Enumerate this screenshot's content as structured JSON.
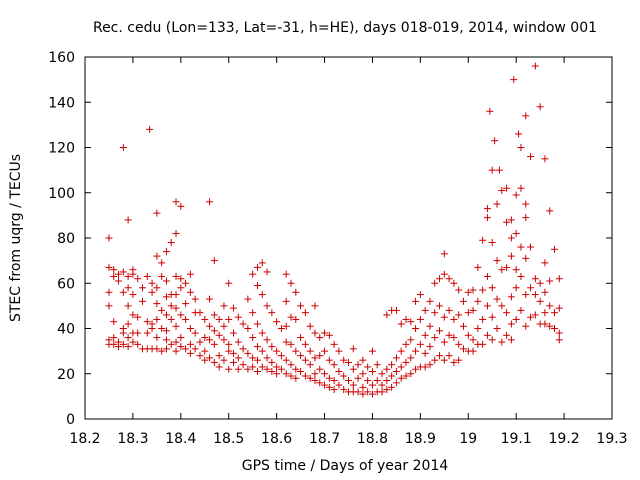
{
  "chart_data": {
    "type": "scatter",
    "title": "Rec. cedu (Lon=133, Lat=-31, h=HE), days 018-019, 2014, window 001",
    "xlabel": "GPS time / Days of year 2014",
    "ylabel": "STEC from uqrg / TECUs",
    "xlim": [
      18.2,
      19.3
    ],
    "ylim": [
      0,
      160
    ],
    "xticks": [
      18.2,
      18.3,
      18.4,
      18.5,
      18.6,
      18.7,
      18.8,
      18.9,
      19.0,
      19.1,
      19.2,
      19.3
    ],
    "xtick_labels": [
      "18.2",
      "18.3",
      "18.4",
      "18.5",
      "18.6",
      "18.7",
      "18.8",
      "18.9",
      "19",
      "19.1",
      "19.2",
      "19.3"
    ],
    "yticks": [
      0,
      20,
      40,
      60,
      80,
      100,
      120,
      140,
      160
    ],
    "ytick_labels": [
      "0",
      "20",
      "40",
      "60",
      "80",
      "100",
      "120",
      "140",
      "160"
    ],
    "grid": false,
    "marker": "+",
    "color": "#cc0000",
    "points": [
      [
        18.25,
        80
      ],
      [
        18.25,
        67
      ],
      [
        18.25,
        56
      ],
      [
        18.25,
        50
      ],
      [
        18.25,
        35
      ],
      [
        18.25,
        33
      ],
      [
        18.26,
        66
      ],
      [
        18.26,
        63
      ],
      [
        18.26,
        43
      ],
      [
        18.26,
        36
      ],
      [
        18.26,
        33
      ],
      [
        18.27,
        64
      ],
      [
        18.27,
        61
      ],
      [
        18.27,
        34
      ],
      [
        18.27,
        32
      ],
      [
        18.28,
        120
      ],
      [
        18.28,
        65
      ],
      [
        18.28,
        56
      ],
      [
        18.28,
        40
      ],
      [
        18.28,
        38
      ],
      [
        18.28,
        33
      ],
      [
        18.29,
        88
      ],
      [
        18.29,
        63
      ],
      [
        18.29,
        58
      ],
      [
        18.29,
        50
      ],
      [
        18.29,
        42
      ],
      [
        18.29,
        36
      ],
      [
        18.29,
        32
      ],
      [
        18.3,
        66
      ],
      [
        18.3,
        64
      ],
      [
        18.3,
        55
      ],
      [
        18.3,
        46
      ],
      [
        18.3,
        38
      ],
      [
        18.3,
        34
      ],
      [
        18.31,
        62
      ],
      [
        18.31,
        45
      ],
      [
        18.31,
        38
      ],
      [
        18.31,
        33
      ],
      [
        18.32,
        58
      ],
      [
        18.32,
        52
      ],
      [
        18.32,
        31
      ],
      [
        18.33,
        63
      ],
      [
        18.33,
        43
      ],
      [
        18.33,
        38
      ],
      [
        18.33,
        31
      ],
      [
        18.335,
        128
      ],
      [
        18.34,
        60
      ],
      [
        18.34,
        56
      ],
      [
        18.34,
        42
      ],
      [
        18.34,
        40
      ],
      [
        18.34,
        31
      ],
      [
        18.35,
        91
      ],
      [
        18.35,
        72
      ],
      [
        18.35,
        58
      ],
      [
        18.35,
        51
      ],
      [
        18.35,
        44
      ],
      [
        18.35,
        36
      ],
      [
        18.35,
        31
      ],
      [
        18.36,
        69
      ],
      [
        18.36,
        63
      ],
      [
        18.36,
        48
      ],
      [
        18.36,
        40
      ],
      [
        18.36,
        30
      ],
      [
        18.37,
        74
      ],
      [
        18.37,
        61
      ],
      [
        18.37,
        54
      ],
      [
        18.37,
        46
      ],
      [
        18.37,
        39
      ],
      [
        18.37,
        35
      ],
      [
        18.37,
        31
      ],
      [
        18.38,
        78
      ],
      [
        18.38,
        55
      ],
      [
        18.38,
        50
      ],
      [
        18.38,
        44
      ],
      [
        18.38,
        33
      ],
      [
        18.39,
        96
      ],
      [
        18.39,
        82
      ],
      [
        18.39,
        63
      ],
      [
        18.39,
        55
      ],
      [
        18.39,
        49
      ],
      [
        18.39,
        41
      ],
      [
        18.39,
        34
      ],
      [
        18.39,
        30
      ],
      [
        18.4,
        94
      ],
      [
        18.4,
        62
      ],
      [
        18.4,
        58
      ],
      [
        18.4,
        46
      ],
      [
        18.4,
        36
      ],
      [
        18.4,
        32
      ],
      [
        18.41,
        60
      ],
      [
        18.41,
        51
      ],
      [
        18.41,
        44
      ],
      [
        18.41,
        31
      ],
      [
        18.42,
        64
      ],
      [
        18.42,
        56
      ],
      [
        18.42,
        40
      ],
      [
        18.42,
        33
      ],
      [
        18.42,
        29
      ],
      [
        18.43,
        53
      ],
      [
        18.43,
        47
      ],
      [
        18.43,
        38
      ],
      [
        18.43,
        31
      ],
      [
        18.44,
        47
      ],
      [
        18.44,
        34
      ],
      [
        18.44,
        28
      ],
      [
        18.45,
        44
      ],
      [
        18.45,
        36
      ],
      [
        18.45,
        30
      ],
      [
        18.45,
        26
      ],
      [
        18.46,
        96
      ],
      [
        18.46,
        53
      ],
      [
        18.46,
        41
      ],
      [
        18.46,
        35
      ],
      [
        18.46,
        27
      ],
      [
        18.47,
        70
      ],
      [
        18.47,
        46
      ],
      [
        18.47,
        39
      ],
      [
        18.47,
        33
      ],
      [
        18.47,
        25
      ],
      [
        18.48,
        44
      ],
      [
        18.48,
        37
      ],
      [
        18.48,
        28
      ],
      [
        18.48,
        23
      ],
      [
        18.49,
        50
      ],
      [
        18.49,
        41
      ],
      [
        18.49,
        35
      ],
      [
        18.49,
        26
      ],
      [
        18.5,
        60
      ],
      [
        18.5,
        44
      ],
      [
        18.5,
        33
      ],
      [
        18.5,
        30
      ],
      [
        18.5,
        22
      ],
      [
        18.51,
        49
      ],
      [
        18.51,
        38
      ],
      [
        18.51,
        29
      ],
      [
        18.51,
        25
      ],
      [
        18.52,
        45
      ],
      [
        18.52,
        34
      ],
      [
        18.52,
        27
      ],
      [
        18.52,
        22
      ],
      [
        18.53,
        42
      ],
      [
        18.53,
        31
      ],
      [
        18.53,
        24
      ],
      [
        18.54,
        53
      ],
      [
        18.54,
        40
      ],
      [
        18.54,
        29
      ],
      [
        18.54,
        22
      ],
      [
        18.55,
        64
      ],
      [
        18.55,
        47
      ],
      [
        18.55,
        36
      ],
      [
        18.55,
        27
      ],
      [
        18.55,
        23
      ],
      [
        18.56,
        67
      ],
      [
        18.56,
        59
      ],
      [
        18.56,
        42
      ],
      [
        18.56,
        32
      ],
      [
        18.56,
        26
      ],
      [
        18.56,
        21
      ],
      [
        18.57,
        69
      ],
      [
        18.57,
        55
      ],
      [
        18.57,
        38
      ],
      [
        18.57,
        30
      ],
      [
        18.57,
        23
      ],
      [
        18.58,
        65
      ],
      [
        18.58,
        50
      ],
      [
        18.58,
        35
      ],
      [
        18.58,
        27
      ],
      [
        18.58,
        22
      ],
      [
        18.59,
        47
      ],
      [
        18.59,
        32
      ],
      [
        18.59,
        25
      ],
      [
        18.59,
        21
      ],
      [
        18.6,
        43
      ],
      [
        18.6,
        30
      ],
      [
        18.6,
        23
      ],
      [
        18.6,
        20
      ],
      [
        18.61,
        40
      ],
      [
        18.61,
        28
      ],
      [
        18.61,
        22
      ],
      [
        18.62,
        64
      ],
      [
        18.62,
        52
      ],
      [
        18.62,
        41
      ],
      [
        18.62,
        34
      ],
      [
        18.62,
        26
      ],
      [
        18.62,
        20
      ],
      [
        18.63,
        60
      ],
      [
        18.63,
        45
      ],
      [
        18.63,
        33
      ],
      [
        18.63,
        24
      ],
      [
        18.63,
        19
      ],
      [
        18.64,
        56
      ],
      [
        18.64,
        44
      ],
      [
        18.64,
        30
      ],
      [
        18.64,
        22
      ],
      [
        18.64,
        18
      ],
      [
        18.65,
        50
      ],
      [
        18.65,
        36
      ],
      [
        18.65,
        28
      ],
      [
        18.65,
        21
      ],
      [
        18.66,
        47
      ],
      [
        18.66,
        33
      ],
      [
        18.66,
        26
      ],
      [
        18.66,
        19
      ],
      [
        18.67,
        41
      ],
      [
        18.67,
        30
      ],
      [
        18.67,
        24
      ],
      [
        18.67,
        18
      ],
      [
        18.68,
        50
      ],
      [
        18.68,
        38
      ],
      [
        18.68,
        27
      ],
      [
        18.68,
        20
      ],
      [
        18.68,
        17
      ],
      [
        18.69,
        36
      ],
      [
        18.69,
        28
      ],
      [
        18.69,
        22
      ],
      [
        18.69,
        16
      ],
      [
        18.7,
        38
      ],
      [
        18.7,
        30
      ],
      [
        18.7,
        20
      ],
      [
        18.7,
        15
      ],
      [
        18.71,
        37
      ],
      [
        18.71,
        26
      ],
      [
        18.71,
        18
      ],
      [
        18.71,
        14
      ],
      [
        18.72,
        33
      ],
      [
        18.72,
        24
      ],
      [
        18.72,
        17
      ],
      [
        18.72,
        13
      ],
      [
        18.73,
        30
      ],
      [
        18.73,
        21
      ],
      [
        18.73,
        15
      ],
      [
        18.74,
        26
      ],
      [
        18.74,
        19
      ],
      [
        18.74,
        13
      ],
      [
        18.75,
        25
      ],
      [
        18.75,
        17
      ],
      [
        18.75,
        12
      ],
      [
        18.76,
        31
      ],
      [
        18.76,
        22
      ],
      [
        18.76,
        15
      ],
      [
        18.76,
        12
      ],
      [
        18.77,
        24
      ],
      [
        18.77,
        18
      ],
      [
        18.77,
        12
      ],
      [
        18.78,
        26
      ],
      [
        18.78,
        20
      ],
      [
        18.78,
        14
      ],
      [
        18.78,
        11
      ],
      [
        18.79,
        23
      ],
      [
        18.79,
        17
      ],
      [
        18.79,
        12
      ],
      [
        18.8,
        30
      ],
      [
        18.8,
        21
      ],
      [
        18.8,
        15
      ],
      [
        18.8,
        11
      ],
      [
        18.81,
        24
      ],
      [
        18.81,
        17
      ],
      [
        18.81,
        12
      ],
      [
        18.82,
        20
      ],
      [
        18.82,
        15
      ],
      [
        18.82,
        12
      ],
      [
        18.83,
        46
      ],
      [
        18.83,
        22
      ],
      [
        18.83,
        17
      ],
      [
        18.83,
        13
      ],
      [
        18.84,
        48
      ],
      [
        18.84,
        24
      ],
      [
        18.84,
        19
      ],
      [
        18.84,
        14
      ],
      [
        18.85,
        48
      ],
      [
        18.85,
        27
      ],
      [
        18.85,
        21
      ],
      [
        18.85,
        16
      ],
      [
        18.86,
        42
      ],
      [
        18.86,
        30
      ],
      [
        18.86,
        23
      ],
      [
        18.86,
        18
      ],
      [
        18.87,
        44
      ],
      [
        18.87,
        33
      ],
      [
        18.87,
        25
      ],
      [
        18.87,
        19
      ],
      [
        18.88,
        43
      ],
      [
        18.88,
        35
      ],
      [
        18.88,
        27
      ],
      [
        18.88,
        20
      ],
      [
        18.89,
        52
      ],
      [
        18.89,
        40
      ],
      [
        18.89,
        30
      ],
      [
        18.89,
        22
      ],
      [
        18.9,
        55
      ],
      [
        18.9,
        44
      ],
      [
        18.9,
        33
      ],
      [
        18.9,
        23
      ],
      [
        18.91,
        48
      ],
      [
        18.91,
        37
      ],
      [
        18.91,
        29
      ],
      [
        18.91,
        23
      ],
      [
        18.92,
        52
      ],
      [
        18.92,
        41
      ],
      [
        18.92,
        32
      ],
      [
        18.92,
        24
      ],
      [
        18.93,
        60
      ],
      [
        18.93,
        47
      ],
      [
        18.93,
        36
      ],
      [
        18.93,
        26
      ],
      [
        18.94,
        62
      ],
      [
        18.94,
        50
      ],
      [
        18.94,
        39
      ],
      [
        18.94,
        28
      ],
      [
        18.95,
        73
      ],
      [
        18.95,
        64
      ],
      [
        18.95,
        45
      ],
      [
        18.95,
        34
      ],
      [
        18.95,
        26
      ],
      [
        18.96,
        62
      ],
      [
        18.96,
        48
      ],
      [
        18.96,
        37
      ],
      [
        18.96,
        28
      ],
      [
        18.97,
        60
      ],
      [
        18.97,
        44
      ],
      [
        18.97,
        36
      ],
      [
        18.97,
        25
      ],
      [
        18.98,
        57
      ],
      [
        18.98,
        46
      ],
      [
        18.98,
        33
      ],
      [
        18.98,
        26
      ],
      [
        18.99,
        52
      ],
      [
        18.99,
        41
      ],
      [
        18.99,
        31
      ],
      [
        19.0,
        56
      ],
      [
        19.0,
        47
      ],
      [
        19.0,
        37
      ],
      [
        19.0,
        30
      ],
      [
        19.01,
        57
      ],
      [
        19.01,
        48
      ],
      [
        19.01,
        35
      ],
      [
        19.01,
        30
      ],
      [
        19.02,
        67
      ],
      [
        19.02,
        52
      ],
      [
        19.02,
        40
      ],
      [
        19.02,
        33
      ],
      [
        19.03,
        79
      ],
      [
        19.03,
        57
      ],
      [
        19.03,
        44
      ],
      [
        19.03,
        33
      ],
      [
        19.04,
        93
      ],
      [
        19.04,
        89
      ],
      [
        19.04,
        63
      ],
      [
        19.04,
        50
      ],
      [
        19.04,
        37
      ],
      [
        19.045,
        136
      ],
      [
        19.05,
        110
      ],
      [
        19.05,
        78
      ],
      [
        19.05,
        58
      ],
      [
        19.05,
        45
      ],
      [
        19.05,
        35
      ],
      [
        19.055,
        123
      ],
      [
        19.06,
        95
      ],
      [
        19.06,
        70
      ],
      [
        19.06,
        53
      ],
      [
        19.06,
        40
      ],
      [
        19.065,
        110
      ],
      [
        19.07,
        101
      ],
      [
        19.07,
        66
      ],
      [
        19.07,
        50
      ],
      [
        19.07,
        34
      ],
      [
        19.08,
        102
      ],
      [
        19.08,
        87
      ],
      [
        19.08,
        67
      ],
      [
        19.08,
        47
      ],
      [
        19.08,
        37
      ],
      [
        19.09,
        88
      ],
      [
        19.09,
        80
      ],
      [
        19.09,
        72
      ],
      [
        19.09,
        54
      ],
      [
        19.09,
        42
      ],
      [
        19.09,
        35
      ],
      [
        19.095,
        150
      ],
      [
        19.1,
        99
      ],
      [
        19.1,
        82
      ],
      [
        19.1,
        66
      ],
      [
        19.1,
        58
      ],
      [
        19.1,
        44
      ],
      [
        19.105,
        126
      ],
      [
        19.11,
        120
      ],
      [
        19.11,
        102
      ],
      [
        19.11,
        76
      ],
      [
        19.11,
        63
      ],
      [
        19.11,
        48
      ],
      [
        19.12,
        134
      ],
      [
        19.12,
        95
      ],
      [
        19.12,
        89
      ],
      [
        19.12,
        71
      ],
      [
        19.12,
        55
      ],
      [
        19.12,
        41
      ],
      [
        19.13,
        116
      ],
      [
        19.13,
        76
      ],
      [
        19.13,
        58
      ],
      [
        19.13,
        45
      ],
      [
        19.14,
        156
      ],
      [
        19.14,
        62
      ],
      [
        19.14,
        55
      ],
      [
        19.14,
        46
      ],
      [
        19.15,
        138
      ],
      [
        19.15,
        60
      ],
      [
        19.15,
        52
      ],
      [
        19.15,
        42
      ],
      [
        19.16,
        115
      ],
      [
        19.16,
        69
      ],
      [
        19.16,
        56
      ],
      [
        19.16,
        47
      ],
      [
        19.16,
        42
      ],
      [
        19.17,
        92
      ],
      [
        19.17,
        61
      ],
      [
        19.17,
        50
      ],
      [
        19.17,
        41
      ],
      [
        19.18,
        75
      ],
      [
        19.18,
        47
      ],
      [
        19.18,
        40
      ],
      [
        19.19,
        62
      ],
      [
        19.19,
        49
      ],
      [
        19.19,
        38
      ],
      [
        19.19,
        35
      ]
    ]
  }
}
